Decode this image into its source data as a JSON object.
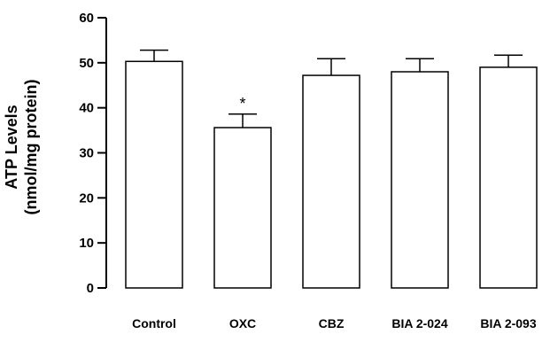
{
  "chart_data": {
    "type": "bar",
    "title": "",
    "xlabel": "",
    "ylabel": [
      "ATP Levels",
      "(nmol/mg protein)"
    ],
    "categories": [
      "Control",
      "OXC",
      "CBZ",
      "BIA 2-024",
      "BIA 2-093"
    ],
    "values": [
      50.3,
      35.6,
      47.2,
      48.0,
      49.0
    ],
    "errors": [
      2.5,
      3.0,
      3.7,
      2.9,
      2.7
    ],
    "annotations": [
      "",
      "*",
      "",
      "",
      ""
    ],
    "ylim": [
      0,
      60
    ],
    "yticks": [
      0,
      10,
      20,
      30,
      40,
      50,
      60
    ],
    "grid": false,
    "colors": {
      "bar_fill": "#ffffff",
      "bar_stroke": "#000000",
      "axis": "#000000"
    }
  }
}
